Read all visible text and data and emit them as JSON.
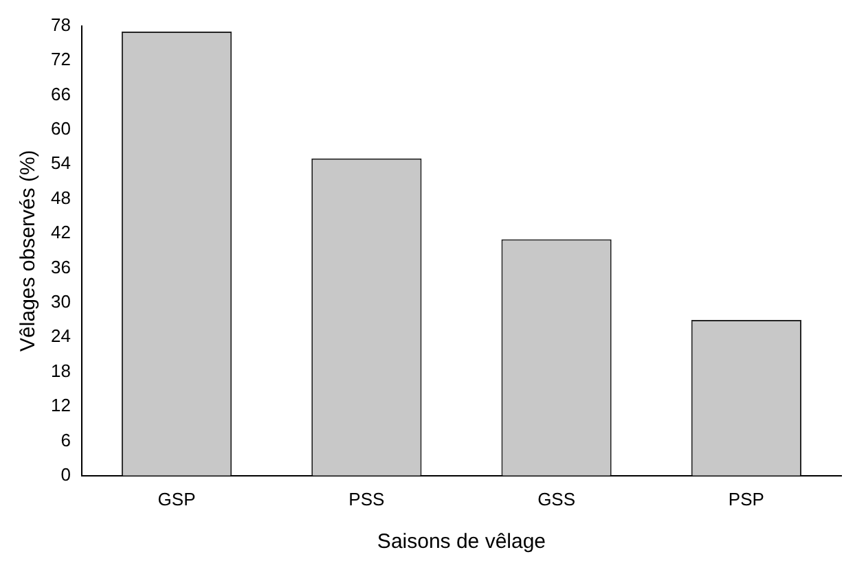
{
  "chart_data": {
    "type": "bar",
    "xlabel": "Saisons de vêlage",
    "ylabel": "Vêlages observés (%)",
    "categories": [
      "GSP",
      "PSS",
      "GSS",
      "PSP"
    ],
    "values": [
      77,
      55,
      41,
      27
    ],
    "color": "#c8c8c8",
    "ylim": [
      0,
      78
    ],
    "yticks": [
      0,
      6,
      12,
      18,
      24,
      30,
      36,
      42,
      48,
      54,
      60,
      66,
      72,
      78
    ],
    "grid": false,
    "legend": false
  }
}
